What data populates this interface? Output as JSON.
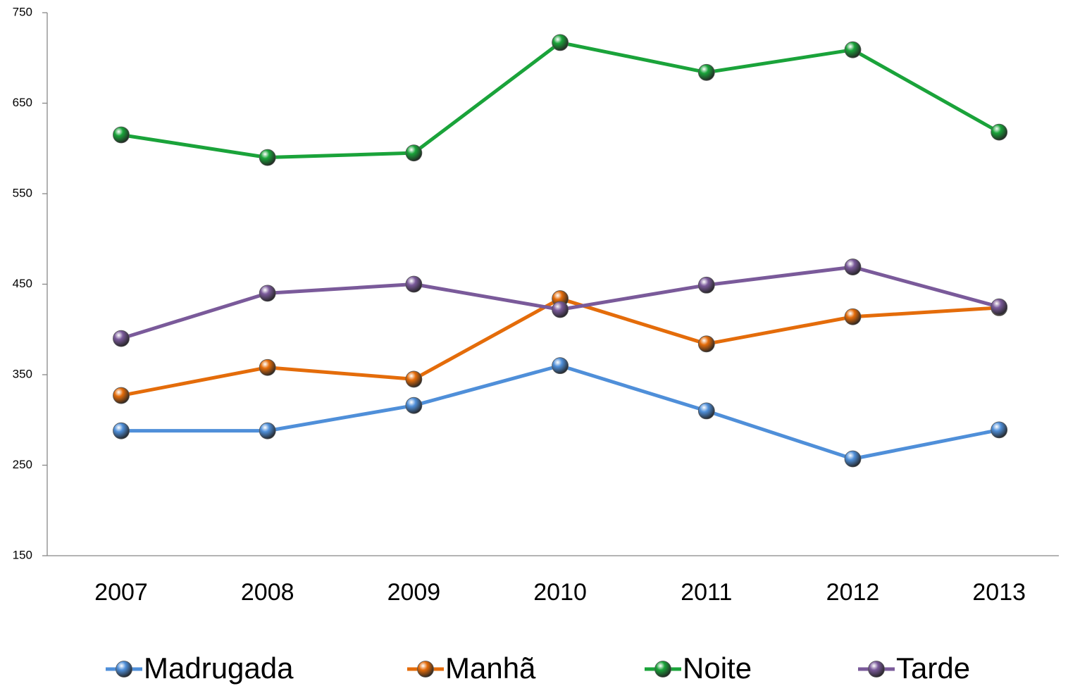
{
  "chart_data": {
    "type": "line",
    "categories": [
      "2007",
      "2008",
      "2009",
      "2010",
      "2011",
      "2012",
      "2013"
    ],
    "series": [
      {
        "name": "Madrugada",
        "color": "#4f8fd9",
        "values": [
          288,
          288,
          316,
          360,
          310,
          257,
          289
        ]
      },
      {
        "name": "Manhã",
        "color": "#e46c0a",
        "values": [
          327,
          358,
          345,
          434,
          384,
          414,
          424
        ]
      },
      {
        "name": "Noite",
        "color": "#1aa33a",
        "values": [
          615,
          590,
          595,
          717,
          684,
          709,
          618
        ]
      },
      {
        "name": "Tarde",
        "color": "#7a5a9a",
        "values": [
          390,
          440,
          450,
          422,
          449,
          469,
          425
        ]
      }
    ],
    "ylim": [
      150,
      750
    ],
    "yticks": [
      150,
      250,
      350,
      450,
      550,
      650,
      750
    ],
    "legend": "bottom"
  }
}
